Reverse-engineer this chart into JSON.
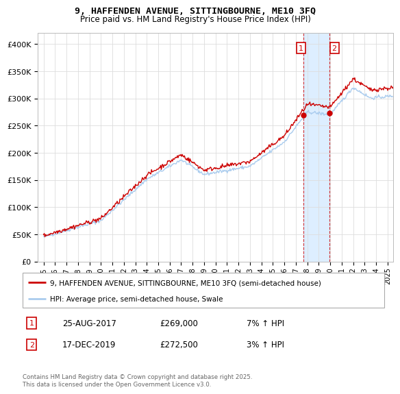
{
  "title_line1": "9, HAFFENDEN AVENUE, SITTINGBOURNE, ME10 3FQ",
  "title_line2": "Price paid vs. HM Land Registry's House Price Index (HPI)",
  "legend_line1": "9, HAFFENDEN AVENUE, SITTINGBOURNE, ME10 3FQ (semi-detached house)",
  "legend_line2": "HPI: Average price, semi-detached house, Swale",
  "footer": "Contains HM Land Registry data © Crown copyright and database right 2025.\nThis data is licensed under the Open Government Licence v3.0.",
  "annotation1_label": "1",
  "annotation1_date": "25-AUG-2017",
  "annotation1_price": "£269,000",
  "annotation1_hpi": "7% ↑ HPI",
  "annotation2_label": "2",
  "annotation2_date": "17-DEC-2019",
  "annotation2_price": "£272,500",
  "annotation2_hpi": "3% ↑ HPI",
  "sale1_x": 2017.65,
  "sale1_y": 269000,
  "sale2_x": 2019.96,
  "sale2_y": 272500,
  "ylim": [
    0,
    420000
  ],
  "xlim": [
    1994.5,
    2025.5
  ],
  "yticks": [
    0,
    50000,
    100000,
    150000,
    200000,
    250000,
    300000,
    350000,
    400000
  ],
  "ytick_labels": [
    "£0",
    "£50K",
    "£100K",
    "£150K",
    "£200K",
    "£250K",
    "£300K",
    "£350K",
    "£400K"
  ],
  "line_color_red": "#cc0000",
  "line_color_blue": "#aaccee",
  "shade_color": "#ddeeff",
  "grid_color": "#dddddd",
  "background_color": "#ffffff",
  "sale_marker_color": "#cc0000",
  "annotation_box_color": "#cc0000"
}
